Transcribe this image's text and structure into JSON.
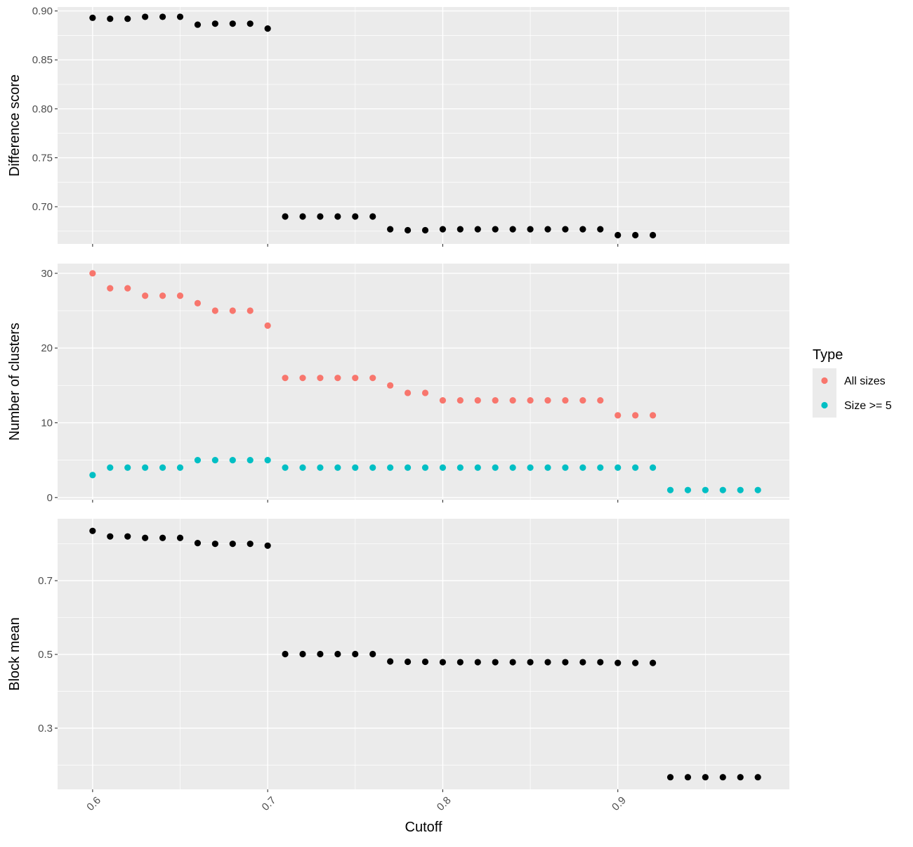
{
  "chart_data": {
    "type": "scatter",
    "xlabel": "Cutoff",
    "x_ticks": [
      "0.6",
      "0.7",
      "0.8",
      "0.9"
    ],
    "xlim": [
      0.58,
      0.998
    ],
    "grid": true,
    "background_color": "#EBEBEB",
    "grid_color": "#FFFFFF",
    "legend": {
      "title": "Type",
      "placement": "right",
      "entries": [
        {
          "label": "All sizes",
          "color": "#F8766D"
        },
        {
          "label": "Size >= 5",
          "color": "#00BFC4"
        }
      ]
    },
    "panels": [
      {
        "ylabel": "Difference score",
        "ylim": [
          0.662,
          0.904
        ],
        "y_ticks": [
          "0.70",
          "0.75",
          "0.80",
          "0.85",
          "0.90"
        ],
        "series": [
          {
            "color": "#000000",
            "x": [
              0.6,
              0.61,
              0.62,
              0.63,
              0.64,
              0.65,
              0.66,
              0.67,
              0.68,
              0.69,
              0.7,
              0.71,
              0.72,
              0.73,
              0.74,
              0.75,
              0.76,
              0.77,
              0.78,
              0.79,
              0.8,
              0.81,
              0.82,
              0.83,
              0.84,
              0.85,
              0.86,
              0.87,
              0.88,
              0.89,
              0.9,
              0.91,
              0.92
            ],
            "y": [
              0.893,
              0.892,
              0.892,
              0.894,
              0.894,
              0.894,
              0.886,
              0.887,
              0.887,
              0.887,
              0.882,
              0.69,
              0.69,
              0.69,
              0.69,
              0.69,
              0.69,
              0.677,
              0.676,
              0.676,
              0.677,
              0.677,
              0.677,
              0.677,
              0.677,
              0.677,
              0.677,
              0.677,
              0.677,
              0.677,
              0.671,
              0.671,
              0.671
            ]
          }
        ]
      },
      {
        "ylabel": "Number of clusters",
        "ylim": [
          -0.3,
          31.3
        ],
        "y_ticks": [
          "0",
          "10",
          "20",
          "30"
        ],
        "series": [
          {
            "name": "All sizes",
            "color": "#F8766D",
            "x": [
              0.6,
              0.61,
              0.62,
              0.63,
              0.64,
              0.65,
              0.66,
              0.67,
              0.68,
              0.69,
              0.7,
              0.71,
              0.72,
              0.73,
              0.74,
              0.75,
              0.76,
              0.77,
              0.78,
              0.79,
              0.8,
              0.81,
              0.82,
              0.83,
              0.84,
              0.85,
              0.86,
              0.87,
              0.88,
              0.89,
              0.9,
              0.91,
              0.92
            ],
            "y": [
              30,
              28,
              28,
              27,
              27,
              27,
              26,
              25,
              25,
              25,
              23,
              16,
              16,
              16,
              16,
              16,
              16,
              15,
              14,
              14,
              13,
              13,
              13,
              13,
              13,
              13,
              13,
              13,
              13,
              13,
              11,
              11,
              11
            ]
          },
          {
            "name": "Size >= 5",
            "color": "#00BFC4",
            "x": [
              0.6,
              0.61,
              0.62,
              0.63,
              0.64,
              0.65,
              0.66,
              0.67,
              0.68,
              0.69,
              0.7,
              0.71,
              0.72,
              0.73,
              0.74,
              0.75,
              0.76,
              0.77,
              0.78,
              0.79,
              0.8,
              0.81,
              0.82,
              0.83,
              0.84,
              0.85,
              0.86,
              0.87,
              0.88,
              0.89,
              0.9,
              0.91,
              0.92,
              0.93,
              0.94,
              0.95,
              0.96,
              0.97,
              0.98
            ],
            "y": [
              3,
              4,
              4,
              4,
              4,
              4,
              5,
              5,
              5,
              5,
              5,
              4,
              4,
              4,
              4,
              4,
              4,
              4,
              4,
              4,
              4,
              4,
              4,
              4,
              4,
              4,
              4,
              4,
              4,
              4,
              4,
              4,
              4,
              1,
              1,
              1,
              1,
              1,
              1
            ]
          }
        ]
      },
      {
        "ylabel": "Block mean",
        "ylim": [
          0.134,
          0.868
        ],
        "y_ticks": [
          "0.3",
          "0.5",
          "0.7"
        ],
        "series": [
          {
            "color": "#000000",
            "x": [
              0.6,
              0.61,
              0.62,
              0.63,
              0.64,
              0.65,
              0.66,
              0.67,
              0.68,
              0.69,
              0.7,
              0.71,
              0.72,
              0.73,
              0.74,
              0.75,
              0.76,
              0.77,
              0.78,
              0.79,
              0.8,
              0.81,
              0.82,
              0.83,
              0.84,
              0.85,
              0.86,
              0.87,
              0.88,
              0.89,
              0.9,
              0.91,
              0.92,
              0.93,
              0.94,
              0.95,
              0.96,
              0.97,
              0.98
            ],
            "y": [
              0.835,
              0.82,
              0.82,
              0.816,
              0.816,
              0.816,
              0.802,
              0.8,
              0.8,
              0.8,
              0.795,
              0.501,
              0.501,
              0.501,
              0.501,
              0.501,
              0.501,
              0.481,
              0.48,
              0.48,
              0.479,
              0.479,
              0.479,
              0.479,
              0.479,
              0.479,
              0.479,
              0.479,
              0.479,
              0.479,
              0.477,
              0.477,
              0.477,
              0.167,
              0.167,
              0.167,
              0.167,
              0.167,
              0.167
            ]
          }
        ]
      }
    ]
  }
}
